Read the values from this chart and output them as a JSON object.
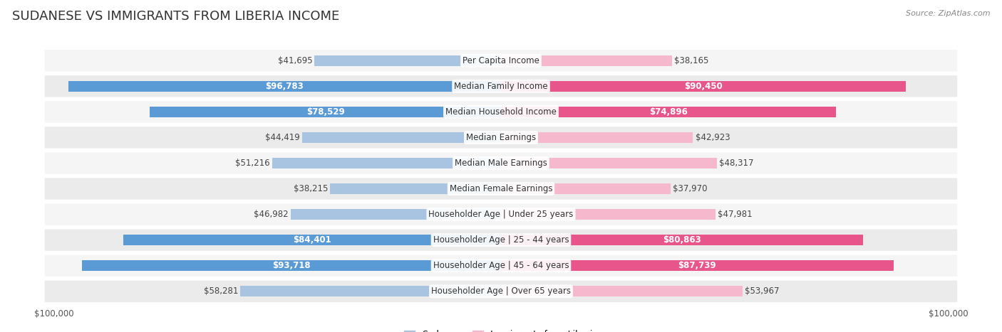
{
  "title": "SUDANESE VS IMMIGRANTS FROM LIBERIA INCOME",
  "source": "Source: ZipAtlas.com",
  "categories": [
    "Per Capita Income",
    "Median Family Income",
    "Median Household Income",
    "Median Earnings",
    "Median Male Earnings",
    "Median Female Earnings",
    "Householder Age | Under 25 years",
    "Householder Age | 25 - 44 years",
    "Householder Age | 45 - 64 years",
    "Householder Age | Over 65 years"
  ],
  "sudanese_values": [
    41695,
    96783,
    78529,
    44419,
    51216,
    38215,
    46982,
    84401,
    93718,
    58281
  ],
  "liberia_values": [
    38165,
    90450,
    74896,
    42923,
    48317,
    37970,
    47981,
    80863,
    87739,
    53967
  ],
  "sudanese_labels": [
    "$41,695",
    "$96,783",
    "$78,529",
    "$44,419",
    "$51,216",
    "$38,215",
    "$46,982",
    "$84,401",
    "$93,718",
    "$58,281"
  ],
  "liberia_labels": [
    "$38,165",
    "$90,450",
    "$74,896",
    "$42,923",
    "$48,317",
    "$37,970",
    "$47,981",
    "$80,863",
    "$87,739",
    "$53,967"
  ],
  "sudanese_color_light": "#a8c4e0",
  "sudanese_color_dark": "#5b9bd5",
  "liberia_color_light": "#f5b8cc",
  "liberia_color_dark": "#e8558a",
  "max_value": 100000,
  "bg_color": "#ffffff",
  "row_colors": [
    "#f5f5f5",
    "#ebebeb"
  ],
  "title_color": "#333333",
  "title_fontsize": 13,
  "label_fontsize": 8.5,
  "category_fontsize": 8.5,
  "source_fontsize": 8,
  "legend_labels": [
    "Sudanese",
    "Immigrants from Liberia"
  ],
  "threshold_dark": 70000
}
